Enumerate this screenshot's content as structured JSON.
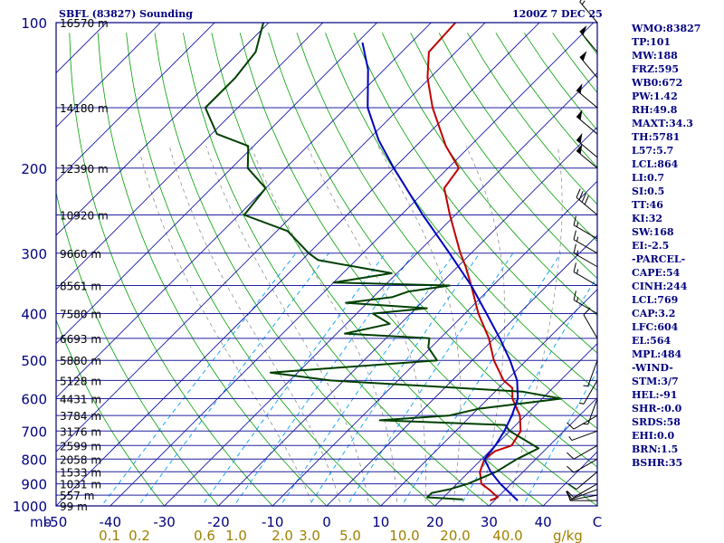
{
  "header": {
    "title_left": "SBFL (83827) Sounding",
    "title_right": "1200Z  7 DEC 25"
  },
  "indices": [
    "WMO:83827",
    "TP:101",
    "MW:188",
    "FRZ:595",
    "WB0:672",
    "PW:1.42",
    "RH:49.8",
    "MAXT:34.3",
    "TH:5781",
    "L57:5.7",
    "LCL:864",
    "LI:0.7",
    "SI:0.5",
    "TT:46",
    "KI:32",
    "SW:168",
    "EI:-2.5",
    "-PARCEL-",
    "CAPE:54",
    "CINH:244",
    "LCL:769",
    "CAP:3.2",
    "LFC:604",
    "EL:564",
    "MPL:484",
    "-WIND-",
    "STM:3/7",
    "HEL:-91",
    "SHR-:0.0",
    "SRDS:58",
    "EHI:0.0",
    "BRN:1.5",
    "BSHR:35"
  ],
  "colors": {
    "axes": "#000080",
    "isobar": "#2020a0",
    "isotherm": "#0000a0",
    "dry_adiabat": "#00a000",
    "moist_adiabat": "#909090",
    "mixing_ratio": "#00a0ff",
    "temperature": "#c00000",
    "dewpoint": "#004000",
    "parcel": "#0000c0",
    "mixing_ratio_labels": "#a08000",
    "wind_barbs": "#000000"
  },
  "chart_data": {
    "type": "line",
    "diagram": "skew-T log-P",
    "xlabel": "C",
    "ylabel": "mb",
    "xlim": [
      -50,
      50
    ],
    "ylim": [
      1000,
      100
    ],
    "pressure_ticks": [
      {
        "p": 100,
        "label": "100"
      },
      {
        "p": 200,
        "label": "200"
      },
      {
        "p": 300,
        "label": "300"
      },
      {
        "p": 400,
        "label": "400"
      },
      {
        "p": 500,
        "label": "500"
      },
      {
        "p": 600,
        "label": "600"
      },
      {
        "p": 700,
        "label": "700"
      },
      {
        "p": 800,
        "label": "800"
      },
      {
        "p": 900,
        "label": "900"
      },
      {
        "p": 1000,
        "label": "1000"
      }
    ],
    "temperature_ticks": [
      -50,
      -40,
      -30,
      -20,
      -10,
      0,
      10,
      20,
      30,
      40
    ],
    "height_labels": [
      {
        "p": 100,
        "label": "16570 m"
      },
      {
        "p": 150,
        "label": "14180 m"
      },
      {
        "p": 200,
        "label": "12390 m"
      },
      {
        "p": 250,
        "label": "10920 m"
      },
      {
        "p": 300,
        "label": "9660 m"
      },
      {
        "p": 350,
        "label": "8561 m"
      },
      {
        "p": 400,
        "label": "7580 m"
      },
      {
        "p": 450,
        "label": "6693 m"
      },
      {
        "p": 500,
        "label": "5880 m"
      },
      {
        "p": 550,
        "label": "5128 m"
      },
      {
        "p": 600,
        "label": "4431 m"
      },
      {
        "p": 650,
        "label": "3784 m"
      },
      {
        "p": 700,
        "label": "3176 m"
      },
      {
        "p": 750,
        "label": "2599 m"
      },
      {
        "p": 800,
        "label": "2058 m"
      },
      {
        "p": 850,
        "label": "1533 m"
      },
      {
        "p": 900,
        "label": "1031 m"
      },
      {
        "p": 950,
        "label": "557 m"
      },
      {
        "p": 1000,
        "label": "99 m"
      }
    ],
    "mixing_ratio_labels": [
      "0.1",
      "0.2",
      "0.6",
      "1.0",
      "2.0",
      "3.0",
      "5.0",
      "10.0",
      "20.0",
      "40.0"
    ],
    "mixing_ratio_unit": "g/kg",
    "series": [
      {
        "key": "temperature",
        "points": [
          [
            975,
            29.2
          ],
          [
            960,
            30.0
          ],
          [
            925,
            27.0
          ],
          [
            900,
            24.5
          ],
          [
            850,
            22.0
          ],
          [
            800,
            20.5
          ],
          [
            770,
            21.0
          ],
          [
            750,
            23.0
          ],
          [
            700,
            22.0
          ],
          [
            650,
            19.0
          ],
          [
            600,
            14.5
          ],
          [
            570,
            12.5
          ],
          [
            550,
            9.5
          ],
          [
            500,
            4.0
          ],
          [
            450,
            -1.0
          ],
          [
            400,
            -7.5
          ],
          [
            350,
            -14.0
          ],
          [
            320,
            -18.5
          ],
          [
            300,
            -22.0
          ],
          [
            250,
            -31.0
          ],
          [
            220,
            -37.0
          ],
          [
            200,
            -38.0
          ],
          [
            180,
            -44.5
          ],
          [
            150,
            -54.0
          ],
          [
            130,
            -60.5
          ],
          [
            115,
            -65.0
          ],
          [
            100,
            -65.5
          ]
        ]
      },
      {
        "key": "dewpoint",
        "points": [
          [
            970,
            24.0
          ],
          [
            960,
            17.0
          ],
          [
            940,
            17.0
          ],
          [
            925,
            19.5
          ],
          [
            900,
            22.0
          ],
          [
            850,
            25.0
          ],
          [
            800,
            26.5
          ],
          [
            760,
            28.5
          ],
          [
            700,
            20.0
          ],
          [
            680,
            18.0
          ],
          [
            665,
            -6.0
          ],
          [
            650,
            6.0
          ],
          [
            630,
            10.0
          ],
          [
            600,
            23.5
          ],
          [
            580,
            15.0
          ],
          [
            550,
            -22.5
          ],
          [
            530,
            -35.0
          ],
          [
            500,
            -6.5
          ],
          [
            470,
            -10.5
          ],
          [
            450,
            -12.0
          ],
          [
            440,
            -28.5
          ],
          [
            420,
            -22.0
          ],
          [
            400,
            -27.0
          ],
          [
            390,
            -18.0
          ],
          [
            380,
            -34.0
          ],
          [
            370,
            -26.5
          ],
          [
            360,
            -24.5
          ],
          [
            350,
            -18.0
          ],
          [
            345,
            -40.0
          ],
          [
            330,
            -31.0
          ],
          [
            310,
            -47.0
          ],
          [
            300,
            -50.0
          ],
          [
            270,
            -58.0
          ],
          [
            250,
            -69.0
          ],
          [
            220,
            -70.0
          ],
          [
            200,
            -77.0
          ],
          [
            180,
            -81.0
          ],
          [
            170,
            -89.0
          ],
          [
            150,
            -96.0
          ],
          [
            130,
            -96.0
          ],
          [
            115,
            -97.0
          ],
          [
            100,
            -101.0
          ]
        ]
      },
      {
        "key": "parcel",
        "points": [
          [
            975,
            34.3
          ],
          [
            900,
            28.0
          ],
          [
            850,
            24.0
          ],
          [
            800,
            20.5
          ],
          [
            750,
            20.0
          ],
          [
            700,
            19.0
          ],
          [
            650,
            17.5
          ],
          [
            600,
            15.5
          ],
          [
            550,
            12.0
          ],
          [
            500,
            7.0
          ],
          [
            450,
            1.0
          ],
          [
            400,
            -6.0
          ],
          [
            350,
            -14.0
          ],
          [
            300,
            -24.0
          ],
          [
            250,
            -36.0
          ],
          [
            200,
            -50.0
          ],
          [
            175,
            -58.0
          ],
          [
            150,
            -66.0
          ],
          [
            125,
            -73.0
          ],
          [
            110,
            -79.0
          ]
        ]
      }
    ],
    "wind_barbs": [
      {
        "p": 975,
        "dir": 270,
        "speed": 10
      },
      {
        "p": 950,
        "dir": 260,
        "speed": 10
      },
      {
        "p": 925,
        "dir": 250,
        "speed": 10
      },
      {
        "p": 900,
        "dir": 240,
        "speed": 10
      },
      {
        "p": 850,
        "dir": 230,
        "speed": 10
      },
      {
        "p": 800,
        "dir": 240,
        "speed": 10
      },
      {
        "p": 750,
        "dir": 240,
        "speed": 10
      },
      {
        "p": 700,
        "dir": 250,
        "speed": 5
      },
      {
        "p": 650,
        "dir": 240,
        "speed": 10
      },
      {
        "p": 600,
        "dir": 200,
        "speed": 5
      },
      {
        "p": 550,
        "dir": 210,
        "speed": 5
      },
      {
        "p": 500,
        "dir": 200,
        "speed": 5
      },
      {
        "p": 450,
        "dir": 330,
        "speed": 10
      },
      {
        "p": 400,
        "dir": 300,
        "speed": 15
      },
      {
        "p": 350,
        "dir": 300,
        "speed": 15
      },
      {
        "p": 320,
        "dir": 300,
        "speed": 15
      },
      {
        "p": 300,
        "dir": 300,
        "speed": 15
      },
      {
        "p": 280,
        "dir": 300,
        "speed": 15
      },
      {
        "p": 250,
        "dir": 310,
        "speed": 40
      },
      {
        "p": 200,
        "dir": 310,
        "speed": 50
      },
      {
        "p": 190,
        "dir": 310,
        "speed": 50
      },
      {
        "p": 170,
        "dir": 310,
        "speed": 50
      },
      {
        "p": 150,
        "dir": 310,
        "speed": 50
      },
      {
        "p": 130,
        "dir": 320,
        "speed": 50
      },
      {
        "p": 115,
        "dir": 320,
        "speed": 50
      },
      {
        "p": 100,
        "dir": 320,
        "speed": 15
      }
    ]
  }
}
